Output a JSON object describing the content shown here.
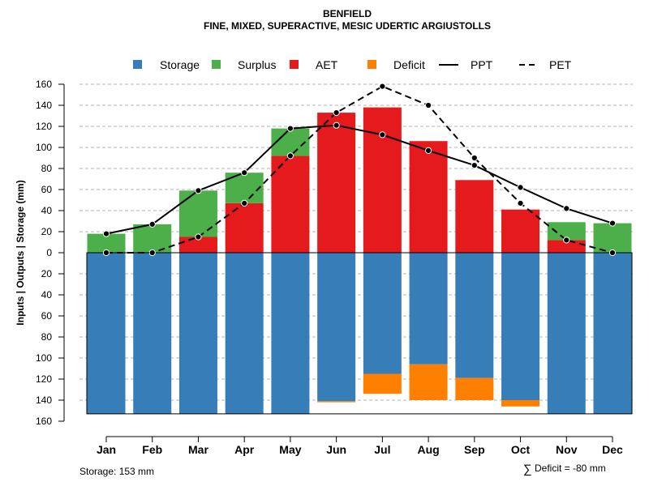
{
  "chart_data": {
    "type": "bar",
    "title": "BENFIELD",
    "subtitle": "FINE, MIXED, SUPERACTIVE, MESIC UDERTIC ARGIUSTOLLS",
    "ylabel": "Inputs | Outputs | Storage    (mm)",
    "ylim": [
      -160,
      160
    ],
    "y_ticks": [
      160,
      140,
      120,
      100,
      80,
      60,
      40,
      20,
      0,
      -20,
      -40,
      -60,
      -80,
      -100,
      -120,
      -140,
      -160
    ],
    "y_tick_labels": [
      "160",
      "140",
      "120",
      "100",
      "80",
      "60",
      "40",
      "20",
      "0",
      "20",
      "40",
      "60",
      "80",
      "100",
      "120",
      "140",
      "160"
    ],
    "categories": [
      "Jan",
      "Feb",
      "Mar",
      "Apr",
      "May",
      "Jun",
      "Jul",
      "Aug",
      "Sep",
      "Oct",
      "Nov",
      "Dec"
    ],
    "legend": [
      {
        "name": "Storage",
        "type": "box"
      },
      {
        "name": "Surplus",
        "type": "box"
      },
      {
        "name": "AET",
        "type": "box"
      },
      {
        "name": "Deficit",
        "type": "box"
      },
      {
        "name": "PPT",
        "type": "solid-line"
      },
      {
        "name": "PET",
        "type": "dashed-line"
      }
    ],
    "series": {
      "storage": [
        153,
        153,
        153,
        153,
        153,
        141,
        115,
        106,
        119,
        140,
        153,
        153
      ],
      "deficit": [
        0,
        0,
        0,
        0,
        0,
        1,
        19,
        34,
        21,
        6,
        0,
        0
      ],
      "aet": [
        0,
        0,
        15,
        47,
        92,
        133,
        138,
        106,
        69,
        41,
        12,
        0
      ],
      "surplus": [
        18,
        27,
        44,
        29,
        26,
        0,
        0,
        0,
        0,
        0,
        17,
        28
      ],
      "ppt": [
        18,
        27,
        59,
        76,
        118,
        121,
        112,
        97,
        83,
        62,
        42,
        28
      ],
      "pet": [
        0,
        0,
        15,
        47,
        92,
        133,
        158,
        140,
        90,
        47,
        12,
        0
      ]
    },
    "colors": {
      "storage": "#377EB8",
      "surplus": "#4DAF4A",
      "aet": "#E41A1C",
      "deficit": "#FF7F00",
      "line": "#000000",
      "grid": "#b3b3b3"
    },
    "grid": true,
    "legend_position": "top"
  },
  "footer": {
    "storage_note": "Storage: 153 mm",
    "deficit_symbol": "∑",
    "deficit_note": "Deficit = -80 mm"
  }
}
